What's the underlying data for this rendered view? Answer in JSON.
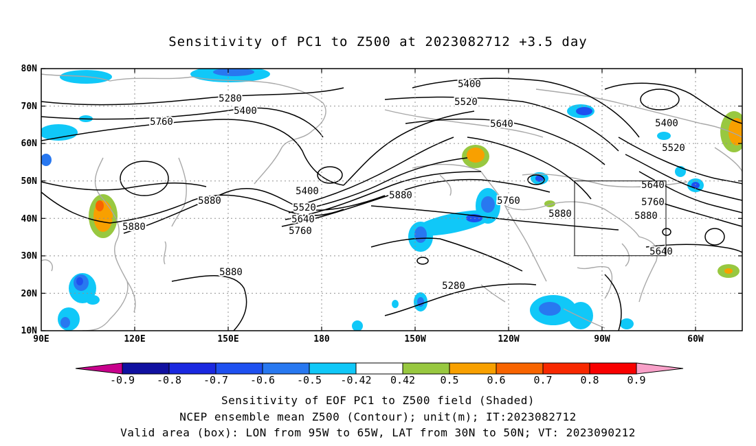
{
  "title": "Sensitivity of PC1 to Z500 at 2023082712 +3.5 day",
  "lat_labels": [
    "80N",
    "70N",
    "60N",
    "50N",
    "40N",
    "30N",
    "20N",
    "10N"
  ],
  "lon_labels": [
    "90E",
    "120E",
    "150E",
    "180",
    "150W",
    "120W",
    "90W",
    "60W"
  ],
  "contour_labels": [
    "5280",
    "5400",
    "5400",
    "5520",
    "5640",
    "5400",
    "5520",
    "5640",
    "5760",
    "5880",
    "5880",
    "5760",
    "5880",
    "5880",
    "5280",
    "5400",
    "5520",
    "5640",
    "5760",
    "5880",
    "5640",
    "5760",
    "5880"
  ],
  "colorbar": {
    "labels": [
      "-0.9",
      "-0.8",
      "-0.7",
      "-0.6",
      "-0.5",
      "-0.42",
      "0.42",
      "0.5",
      "0.6",
      "0.7",
      "0.8",
      "0.9"
    ],
    "colors": [
      "#c8008c",
      "#1010a0",
      "#1a28e0",
      "#1e50f0",
      "#2878f0",
      "#10c8f8",
      "#ffffff",
      "#98c840",
      "#f8a000",
      "#f86400",
      "#f82800",
      "#f80000",
      "#f8a0c8"
    ]
  },
  "captions": {
    "line1": "Sensitivity of EOF PC1 to Z500 field (Shaded)",
    "line2": "NCEP ensemble mean Z500 (Contour); unit(m); IT:2023082712",
    "line3": "Valid area (box): LON from 95W to 65W, LAT from 30N to 50N; VT: 2023090212"
  }
}
